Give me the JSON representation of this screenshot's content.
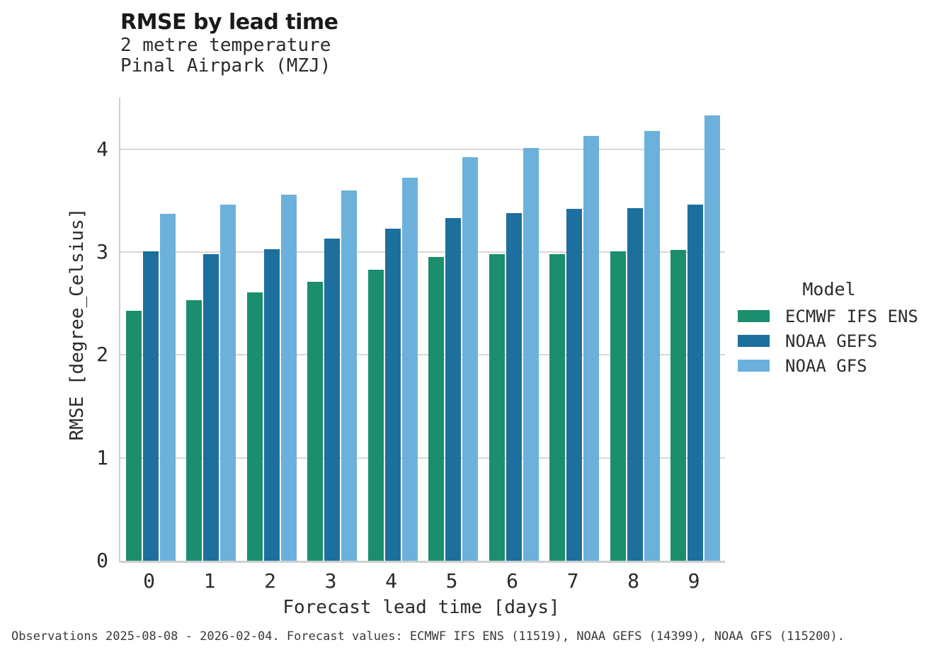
{
  "header": {
    "title": "RMSE by lead time",
    "subtitle": [
      "2 metre temperature",
      "Pinal Airpark (MZJ)"
    ]
  },
  "footer": {
    "note": "Observations 2025-08-08 - 2026-02-04. Forecast values: ECMWF IFS ENS (11519), NOAA GEFS (14399), NOAA GFS (115200)."
  },
  "colors": {
    "gridline": "#d8d8d8",
    "axis_spine": "#d0d0d0",
    "text": "#2b2b2b"
  },
  "chart_data": {
    "type": "bar",
    "title": "RMSE by lead time",
    "subtitle": [
      "2 metre temperature",
      "Pinal Airpark (MZJ)"
    ],
    "xlabel": "Forecast lead time [days]",
    "ylabel": "RMSE [degree_Celsius]",
    "categories": [
      "0",
      "1",
      "2",
      "3",
      "4",
      "5",
      "6",
      "7",
      "8",
      "9"
    ],
    "yticks": [
      0,
      1,
      2,
      3,
      4
    ],
    "ylim": [
      0,
      4.5
    ],
    "grid": "horizontal",
    "legend": {
      "title": "Model",
      "position": "right"
    },
    "series": [
      {
        "name": "ECMWF IFS ENS",
        "color": "#1b8e6e",
        "values": [
          2.43,
          2.53,
          2.61,
          2.71,
          2.83,
          2.95,
          2.98,
          2.98,
          3.01,
          3.02
        ]
      },
      {
        "name": "NOAA GEFS",
        "color": "#1d6f9e",
        "values": [
          3.01,
          2.98,
          3.03,
          3.13,
          3.23,
          3.33,
          3.38,
          3.42,
          3.43,
          3.46
        ]
      },
      {
        "name": "NOAA GFS",
        "color": "#6cb1db",
        "values": [
          3.37,
          3.46,
          3.56,
          3.6,
          3.72,
          3.92,
          4.01,
          4.13,
          4.18,
          4.33
        ]
      }
    ]
  }
}
